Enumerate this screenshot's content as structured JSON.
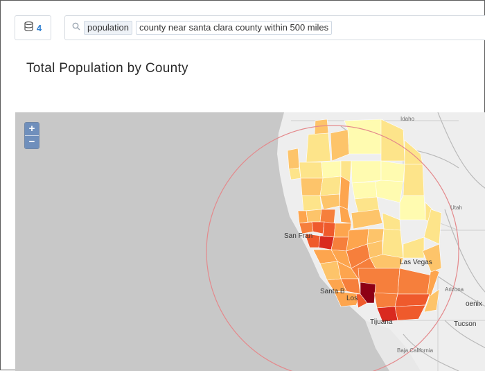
{
  "toolbar": {
    "source_count": "4",
    "source_icon": "database-icon",
    "search_icon": "search-icon",
    "tokens": [
      "population",
      "county near santa clara county within 500 miles"
    ]
  },
  "title": "Total Population by County",
  "map": {
    "zoom_in": "+",
    "zoom_out": "−",
    "labels": {
      "idaho": "Idaho",
      "utah": "Utah",
      "sanfran": "San Fran",
      "lasvegas": "Las Vegas",
      "santab": "Santa B",
      "los": "Los",
      "arizona": "Arizona",
      "phoenix": "oenix",
      "tucson": "Tucson",
      "tijuana": "Tijuana",
      "bajacalifornia": "Baja California"
    },
    "radius_circle_color": "#e4898c",
    "color_scale": [
      "#fffbb0",
      "#fde48a",
      "#fdc46a",
      "#fda54e",
      "#f67f3c",
      "#ef5a2c",
      "#d92a1f",
      "#8e0015"
    ]
  }
}
